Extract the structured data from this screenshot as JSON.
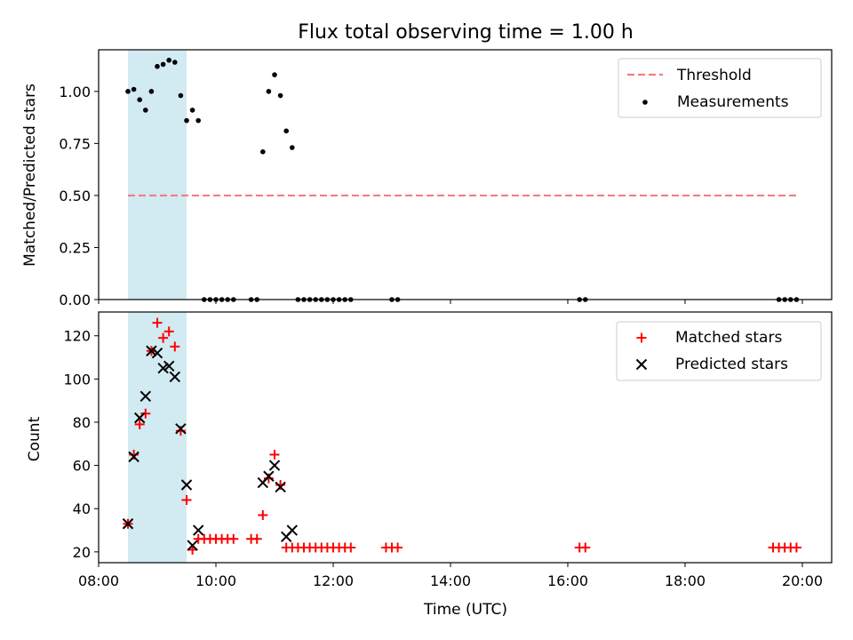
{
  "chart_data": [
    {
      "type": "scatter",
      "title": "Flux total observing time = 1.00 h",
      "xlabel": "",
      "ylabel": "Matched/Predicted stars",
      "xlim": [
        "08:00",
        "20:30"
      ],
      "ylim": [
        0,
        1.2
      ],
      "yticks": [
        "0.00",
        "0.25",
        "0.50",
        "0.75",
        "1.00"
      ],
      "shaded_span": {
        "start": "08:30",
        "end": "09:30",
        "color": "#add8e6"
      },
      "legend_position": "top-right",
      "threshold": {
        "name": "Threshold",
        "value": 0.5,
        "x_start": "08:30",
        "x_end": "19:55",
        "color": "#f08080",
        "style": "dashed"
      },
      "series": [
        {
          "name": "Measurements",
          "color": "#000000",
          "marker": "dot",
          "points": [
            [
              "08:30",
              1.0
            ],
            [
              "08:36",
              1.01
            ],
            [
              "08:42",
              0.96
            ],
            [
              "08:48",
              0.91
            ],
            [
              "08:54",
              1.0
            ],
            [
              "09:00",
              1.12
            ],
            [
              "09:06",
              1.13
            ],
            [
              "09:12",
              1.15
            ],
            [
              "09:18",
              1.14
            ],
            [
              "09:24",
              0.98
            ],
            [
              "09:30",
              0.86
            ],
            [
              "09:36",
              0.91
            ],
            [
              "09:42",
              0.86
            ],
            [
              "09:48",
              0
            ],
            [
              "09:54",
              0
            ],
            [
              "10:00",
              0
            ],
            [
              "10:06",
              0
            ],
            [
              "10:12",
              0
            ],
            [
              "10:18",
              0
            ],
            [
              "10:36",
              0
            ],
            [
              "10:42",
              0
            ],
            [
              "10:48",
              0.71
            ],
            [
              "10:54",
              1.0
            ],
            [
              "11:00",
              1.08
            ],
            [
              "11:06",
              0.98
            ],
            [
              "11:12",
              0.81
            ],
            [
              "11:18",
              0.73
            ],
            [
              "11:24",
              0
            ],
            [
              "11:30",
              0
            ],
            [
              "11:36",
              0
            ],
            [
              "11:42",
              0
            ],
            [
              "11:48",
              0
            ],
            [
              "11:54",
              0
            ],
            [
              "12:00",
              0
            ],
            [
              "12:06",
              0
            ],
            [
              "12:12",
              0
            ],
            [
              "12:18",
              0
            ],
            [
              "13:00",
              0
            ],
            [
              "13:06",
              0
            ],
            [
              "16:12",
              0
            ],
            [
              "16:18",
              0
            ],
            [
              "19:36",
              0
            ],
            [
              "19:42",
              0
            ],
            [
              "19:48",
              0
            ],
            [
              "19:54",
              0
            ]
          ]
        }
      ]
    },
    {
      "type": "scatter",
      "title": "",
      "xlabel": "Time (UTC)",
      "ylabel": "Count",
      "xlim": [
        "08:00",
        "20:30"
      ],
      "ylim": [
        15,
        131
      ],
      "xticks": [
        "08:00",
        "10:00",
        "12:00",
        "14:00",
        "16:00",
        "18:00",
        "20:00"
      ],
      "yticks": [
        "20",
        "40",
        "60",
        "80",
        "100",
        "120"
      ],
      "shaded_span": {
        "start": "08:30",
        "end": "09:30",
        "color": "#add8e6"
      },
      "legend_position": "top-right",
      "series": [
        {
          "name": "Matched stars",
          "color": "#ff0000",
          "marker": "plus",
          "points": [
            [
              "08:30",
              33
            ],
            [
              "08:36",
              65
            ],
            [
              "08:42",
              79
            ],
            [
              "08:48",
              84
            ],
            [
              "08:54",
              113
            ],
            [
              "09:00",
              126
            ],
            [
              "09:06",
              119
            ],
            [
              "09:12",
              122
            ],
            [
              "09:18",
              115
            ],
            [
              "09:24",
              76
            ],
            [
              "09:30",
              44
            ],
            [
              "09:36",
              21
            ],
            [
              "09:42",
              26
            ],
            [
              "09:48",
              26
            ],
            [
              "09:54",
              26
            ],
            [
              "10:00",
              26
            ],
            [
              "10:06",
              26
            ],
            [
              "10:12",
              26
            ],
            [
              "10:18",
              26
            ],
            [
              "10:36",
              26
            ],
            [
              "10:42",
              26
            ],
            [
              "10:48",
              37
            ],
            [
              "10:54",
              54
            ],
            [
              "11:00",
              65
            ],
            [
              "11:06",
              51
            ],
            [
              "11:12",
              22
            ],
            [
              "11:18",
              22
            ],
            [
              "11:24",
              22
            ],
            [
              "11:30",
              22
            ],
            [
              "11:36",
              22
            ],
            [
              "11:42",
              22
            ],
            [
              "11:48",
              22
            ],
            [
              "11:54",
              22
            ],
            [
              "12:00",
              22
            ],
            [
              "12:06",
              22
            ],
            [
              "12:12",
              22
            ],
            [
              "12:18",
              22
            ],
            [
              "12:54",
              22
            ],
            [
              "13:00",
              22
            ],
            [
              "13:06",
              22
            ],
            [
              "16:12",
              22
            ],
            [
              "16:18",
              22
            ],
            [
              "19:30",
              22
            ],
            [
              "19:36",
              22
            ],
            [
              "19:42",
              22
            ],
            [
              "19:48",
              22
            ],
            [
              "19:54",
              22
            ]
          ]
        },
        {
          "name": "Predicted stars",
          "color": "#000000",
          "marker": "x",
          "points": [
            [
              "08:30",
              33
            ],
            [
              "08:36",
              64
            ],
            [
              "08:42",
              82
            ],
            [
              "08:48",
              92
            ],
            [
              "08:54",
              113
            ],
            [
              "09:00",
              112
            ],
            [
              "09:06",
              105
            ],
            [
              "09:12",
              106
            ],
            [
              "09:18",
              101
            ],
            [
              "09:24",
              77
            ],
            [
              "09:30",
              51
            ],
            [
              "09:36",
              23
            ],
            [
              "09:42",
              30
            ],
            [
              "10:48",
              52
            ],
            [
              "10:54",
              55
            ],
            [
              "11:00",
              60
            ],
            [
              "11:06",
              50
            ],
            [
              "11:12",
              27
            ],
            [
              "11:18",
              30
            ]
          ]
        }
      ]
    }
  ]
}
